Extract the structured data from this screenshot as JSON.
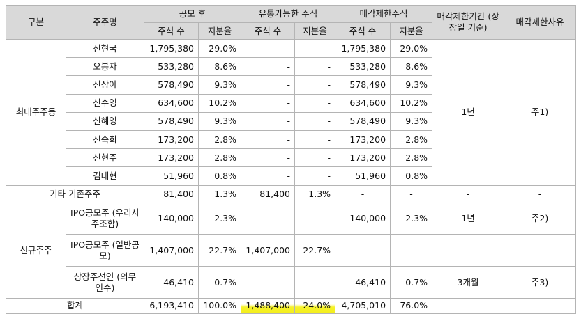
{
  "header": {
    "category": "구분",
    "shareholder": "주주명",
    "after_ipo": "공모 후",
    "tradable": "유통가능한 주식",
    "restricted": "매각제한주식",
    "restrict_period": "매각제한기간\n(상장일 기준)",
    "restrict_reason": "매각제한사유",
    "shares": "주식 수",
    "ratio": "지분율"
  },
  "group1": {
    "label": "최대주주등",
    "period": "1년",
    "reason": "주1)",
    "rows": [
      {
        "name": "신현국",
        "shares": "1,795,380",
        "ratio": "29.0%",
        "tshares": "-",
        "tratio": "-",
        "rshares": "1,795,380",
        "rratio": "29.0%"
      },
      {
        "name": "오봉자",
        "shares": "533,280",
        "ratio": "8.6%",
        "tshares": "-",
        "tratio": "-",
        "rshares": "533,280",
        "rratio": "8.6%"
      },
      {
        "name": "신상아",
        "shares": "578,490",
        "ratio": "9.3%",
        "tshares": "-",
        "tratio": "-",
        "rshares": "578,490",
        "rratio": "9.3%"
      },
      {
        "name": "신수영",
        "shares": "634,600",
        "ratio": "10.2%",
        "tshares": "-",
        "tratio": "-",
        "rshares": "634,600",
        "rratio": "10.2%"
      },
      {
        "name": "신혜영",
        "shares": "578,490",
        "ratio": "9.3%",
        "tshares": "-",
        "tratio": "-",
        "rshares": "578,490",
        "rratio": "9.3%"
      },
      {
        "name": "신숙희",
        "shares": "173,200",
        "ratio": "2.8%",
        "tshares": "-",
        "tratio": "-",
        "rshares": "173,200",
        "rratio": "2.8%"
      },
      {
        "name": "신현주",
        "shares": "173,200",
        "ratio": "2.8%",
        "tshares": "-",
        "tratio": "-",
        "rshares": "173,200",
        "rratio": "2.8%"
      },
      {
        "name": "김대현",
        "shares": "51,960",
        "ratio": "0.8%",
        "tshares": "-",
        "tratio": "-",
        "rshares": "51,960",
        "rratio": "0.8%"
      }
    ]
  },
  "other": {
    "label": "기타 기존주주",
    "shares": "81,400",
    "ratio": "1.3%",
    "tshares": "81,400",
    "tratio": "1.3%",
    "rshares": "-",
    "rratio": "-",
    "period": "-",
    "reason": "-"
  },
  "group2": {
    "label": "신규주주",
    "rows": [
      {
        "name": "IPO공모주\n(우리사주조합)",
        "shares": "140,000",
        "ratio": "2.3%",
        "tshares": "-",
        "tratio": "-",
        "rshares": "140,000",
        "rratio": "2.3%",
        "period": "1년",
        "reason": "주2)"
      },
      {
        "name": "IPO공모주\n(일반공모)",
        "shares": "1,407,000",
        "ratio": "22.7%",
        "tshares": "1,407,000",
        "tratio": "22.7%",
        "rshares": "-",
        "rratio": "-",
        "period": "-",
        "reason": "-"
      },
      {
        "name": "상장주선인\n(의무인수)",
        "shares": "46,410",
        "ratio": "0.7%",
        "tshares": "-",
        "tratio": "-",
        "rshares": "46,410",
        "rratio": "0.7%",
        "period": "3개월",
        "reason": "주3)"
      }
    ]
  },
  "total": {
    "label": "합계",
    "shares": "6,193,410",
    "ratio": "100.0%",
    "tshares": "1,488,400",
    "tratio": "24.0%",
    "rshares": "4,705,010",
    "rratio": "76.0%",
    "period": "-",
    "reason": "-"
  },
  "colors": {
    "header_bg": "#d9d9d9",
    "highlight": "#f3ee1c",
    "border": "#b4b4b4"
  }
}
